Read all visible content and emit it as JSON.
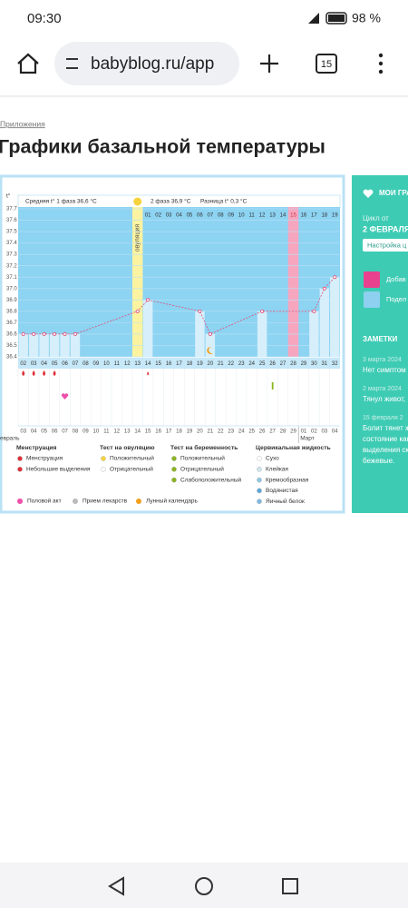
{
  "status_bar": {
    "time": "09:30",
    "battery": "98 %"
  },
  "browser": {
    "url": "babyblog.ru/app",
    "tabs": "15"
  },
  "breadcrumb": "Приложения",
  "title": "Графики базальной температуры",
  "chart_data": {
    "type": "line",
    "y_unit_label": "t°",
    "header": {
      "phase1": "Средняя t° 1 фаза 36,6 °C",
      "phase2": "2 фаза 36,9 °C",
      "difference": "Разница t° 0,3 °C"
    },
    "ovulation_label": "овуляция",
    "ovulation_day": 13,
    "highlight_day": 28,
    "highlight_color": "#f6a7bf",
    "background_color": "#8dd3f2",
    "bar_color": "#d6effb",
    "ovulation_color": "#fbf3a0",
    "line_color": "#e0507a",
    "series": [
      {
        "name": "Базальная температура",
        "x": [
          2,
          3,
          4,
          5,
          6,
          7,
          13,
          14,
          19,
          20,
          25,
          30,
          31,
          32
        ],
        "values": [
          36.6,
          36.6,
          36.6,
          36.6,
          36.6,
          36.6,
          36.8,
          36.9,
          36.8,
          36.6,
          36.8,
          36.8,
          37.0,
          37.1
        ]
      }
    ],
    "xlim": [
      1.5,
      32.5
    ],
    "ylim": [
      36.4,
      37.7
    ],
    "yticks": [
      36.4,
      36.5,
      36.6,
      36.7,
      36.8,
      36.9,
      {
        "value": 37,
        "label": "37.0"
      },
      37.1,
      37.2,
      37.3,
      37.4,
      37.5,
      37.6,
      37.7
    ],
    "xticks": [
      {
        "value": 2,
        "label": "02"
      },
      {
        "value": 3,
        "label": "03"
      },
      {
        "value": 4,
        "label": "04"
      },
      {
        "value": 5,
        "label": "05"
      },
      {
        "value": 6,
        "label": "06"
      },
      {
        "value": 7,
        "label": "07"
      },
      {
        "value": 8,
        "label": "08"
      },
      {
        "value": 9,
        "label": "09"
      },
      {
        "value": 10,
        "label": "10"
      },
      11,
      12,
      13,
      14,
      15,
      16,
      17,
      18,
      19,
      20,
      21,
      22,
      23,
      24,
      25,
      26,
      27,
      28,
      29,
      30,
      31,
      32
    ],
    "phase2_start": 14,
    "phase2_days": [
      "01",
      "02",
      "03",
      "04",
      "05",
      "06",
      "07",
      "08",
      "09",
      "10",
      "11",
      "12",
      "13",
      "14",
      "15",
      "16",
      "17",
      "18",
      "19"
    ],
    "dates": [
      "03",
      "04",
      "05",
      "06",
      "07",
      "08",
      "09",
      "10",
      "11",
      "12",
      "13",
      "14",
      "15",
      "16",
      "17",
      "18",
      "19",
      "20",
      "21",
      "22",
      "23",
      "24",
      "25",
      "26",
      "27",
      "28",
      "29",
      "01",
      "02",
      "03",
      "04"
    ],
    "month_start": "евраль",
    "month_next": "Март",
    "events": {
      "menstruation": [
        2,
        3,
        4,
        5
      ],
      "spotting": [
        14
      ],
      "intercourse": [
        6
      ],
      "pregnancy_test_weak": [
        26
      ],
      "lunar": [
        20
      ]
    },
    "legend": [
      {
        "title": "Менструация",
        "items": [
          "Менструация",
          "Небольшие выделения"
        ]
      },
      {
        "title": "Тест на овуляцию",
        "items": [
          "Положительный",
          "Отрицательный"
        ]
      },
      {
        "title": "Тест на беременность",
        "items": [
          "Положительный",
          "Отрицательный",
          "Слабоположительный"
        ]
      },
      {
        "title": "Цервикальная жидкость",
        "items": [
          "Сухо",
          "Клейкая",
          "Кремообразная",
          "Водянистая",
          "Яичный белок"
        ]
      }
    ],
    "legend_extra": [
      "Половой акт",
      "Прием лекарств",
      "Лунный календарь"
    ]
  },
  "side_panel": {
    "my_charts": "МОИ ГРАФ",
    "cycle_from": "Цикл от",
    "cycle_date": "2 ФЕВРАЛЯ",
    "settings": "Настройка ц",
    "add": "Добав",
    "share": "Подел",
    "notes_title": "ЗАМЕТКИ",
    "notes": [
      {
        "date": "3 марта 2024",
        "text": [
          "Нет симптом"
        ]
      },
      {
        "date": "2 марта 2024",
        "text": [
          "Тянул живот, "
        ]
      },
      {
        "date": "15 февраля 2",
        "text": [
          "Болит тянет ж",
          "состояние как",
          "выделения ск",
          "бежевые."
        ]
      }
    ]
  }
}
